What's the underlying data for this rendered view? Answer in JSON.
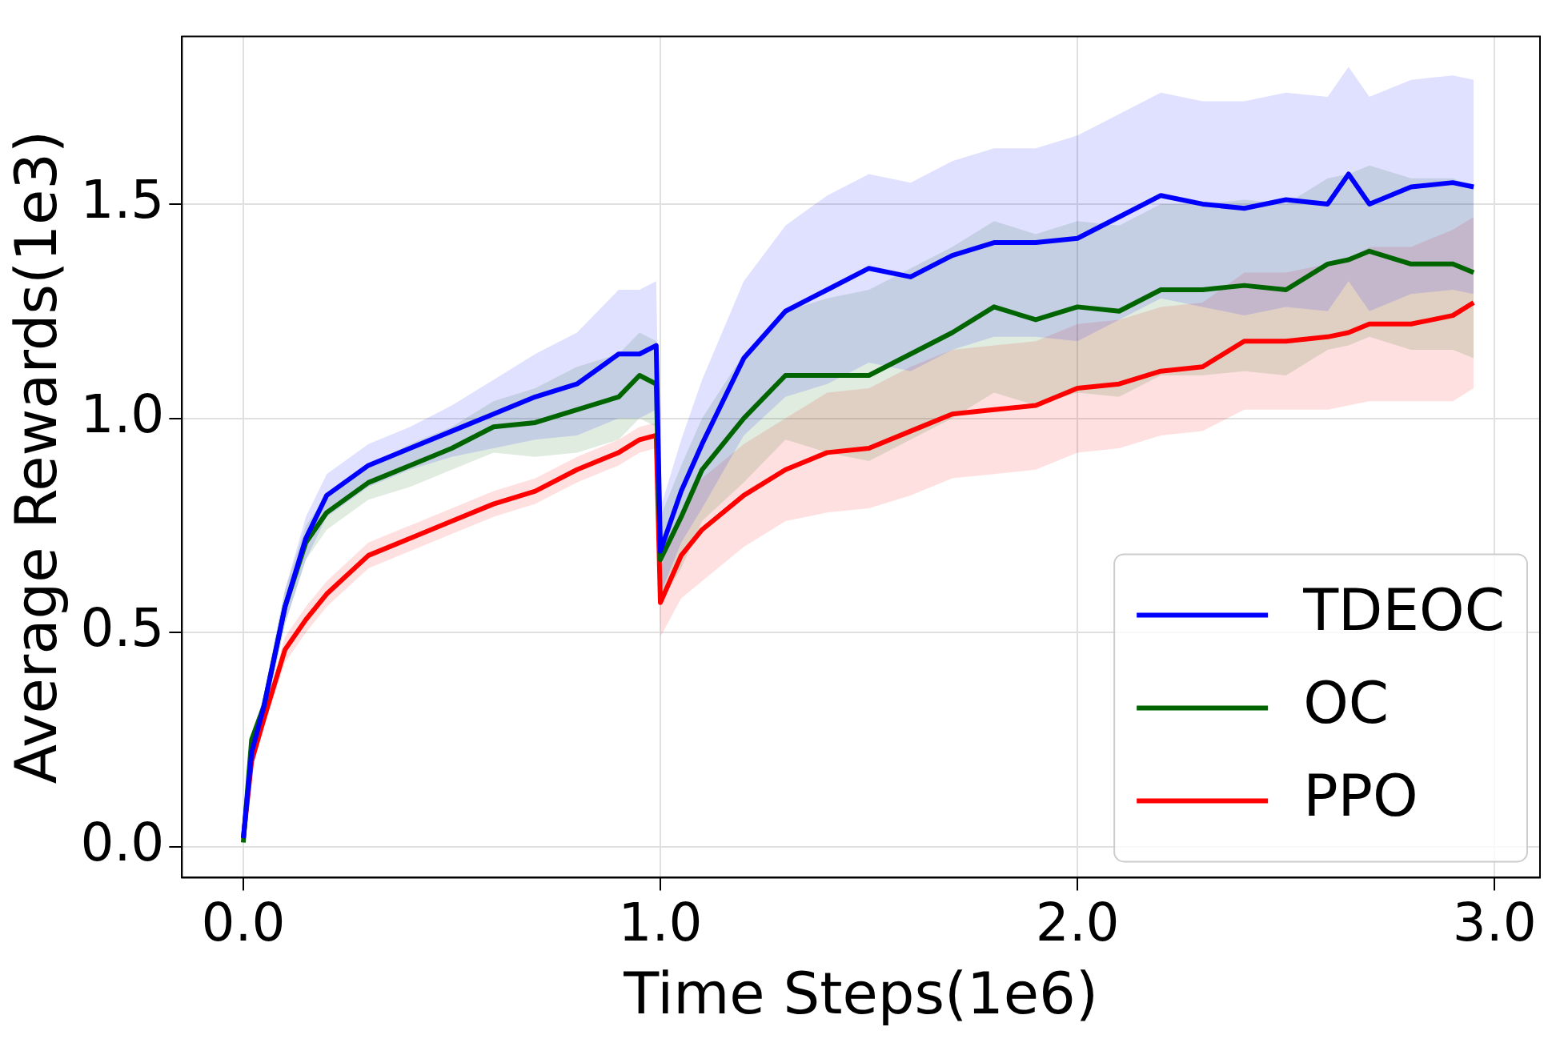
{
  "chart_data": {
    "type": "line",
    "xlabel": "Time Steps(1e6)",
    "ylabel": "Average Rewards(1e3)",
    "x": [
      0,
      0.02,
      0.05,
      0.1,
      0.15,
      0.2,
      0.3,
      0.4,
      0.5,
      0.6,
      0.7,
      0.8,
      0.9,
      0.95,
      0.99,
      1.0,
      1.05,
      1.1,
      1.2,
      1.3,
      1.4,
      1.5,
      1.6,
      1.7,
      1.8,
      1.9,
      2.0,
      2.1,
      2.2,
      2.3,
      2.4,
      2.5,
      2.6,
      2.65,
      2.7,
      2.8,
      2.9,
      2.95
    ],
    "series": [
      {
        "name": "TDEOC",
        "color": "#0000ff",
        "values": [
          0.02,
          0.22,
          0.33,
          0.56,
          0.72,
          0.82,
          0.89,
          0.93,
          0.97,
          1.01,
          1.05,
          1.08,
          1.15,
          1.15,
          1.17,
          0.69,
          0.83,
          0.94,
          1.14,
          1.25,
          1.3,
          1.35,
          1.33,
          1.38,
          1.41,
          1.41,
          1.42,
          1.47,
          1.52,
          1.5,
          1.49,
          1.51,
          1.5,
          1.57,
          1.5,
          1.54,
          1.55,
          1.54
        ],
        "upper": [
          0.02,
          0.24,
          0.36,
          0.6,
          0.77,
          0.87,
          0.94,
          0.98,
          1.03,
          1.09,
          1.15,
          1.2,
          1.3,
          1.3,
          1.32,
          0.79,
          0.95,
          1.09,
          1.32,
          1.45,
          1.52,
          1.57,
          1.55,
          1.6,
          1.63,
          1.63,
          1.66,
          1.71,
          1.76,
          1.74,
          1.74,
          1.76,
          1.75,
          1.82,
          1.75,
          1.79,
          1.8,
          1.79
        ],
        "lower": [
          0.02,
          0.2,
          0.3,
          0.52,
          0.67,
          0.77,
          0.84,
          0.88,
          0.91,
          0.93,
          0.95,
          0.96,
          1.0,
          1.0,
          1.02,
          0.59,
          0.71,
          0.79,
          0.96,
          1.05,
          1.08,
          1.13,
          1.11,
          1.16,
          1.19,
          1.19,
          1.18,
          1.23,
          1.28,
          1.26,
          1.24,
          1.26,
          1.25,
          1.32,
          1.25,
          1.29,
          1.3,
          1.29
        ]
      },
      {
        "name": "OC",
        "color": "#006400",
        "values": [
          0.01,
          0.25,
          0.33,
          0.56,
          0.71,
          0.78,
          0.85,
          0.89,
          0.93,
          0.98,
          0.99,
          1.02,
          1.05,
          1.1,
          1.08,
          0.67,
          0.77,
          0.88,
          1.0,
          1.1,
          1.1,
          1.1,
          1.15,
          1.2,
          1.26,
          1.23,
          1.26,
          1.25,
          1.3,
          1.3,
          1.31,
          1.3,
          1.36,
          1.37,
          1.39,
          1.36,
          1.36,
          1.34
        ],
        "upper": [
          0.02,
          0.24,
          0.36,
          0.6,
          0.75,
          0.82,
          0.89,
          0.94,
          0.98,
          1.04,
          1.07,
          1.12,
          1.15,
          1.2,
          1.18,
          0.77,
          0.89,
          1.0,
          1.15,
          1.25,
          1.28,
          1.3,
          1.35,
          1.4,
          1.46,
          1.43,
          1.46,
          1.45,
          1.5,
          1.5,
          1.51,
          1.5,
          1.56,
          1.57,
          1.59,
          1.56,
          1.56,
          1.54
        ],
        "lower": [
          0.02,
          0.2,
          0.3,
          0.52,
          0.67,
          0.74,
          0.81,
          0.84,
          0.88,
          0.92,
          0.91,
          0.92,
          0.95,
          1.0,
          0.98,
          0.57,
          0.65,
          0.76,
          0.85,
          0.95,
          0.92,
          0.9,
          0.95,
          1.0,
          1.06,
          1.03,
          1.06,
          1.05,
          1.1,
          1.1,
          1.11,
          1.1,
          1.16,
          1.17,
          1.19,
          1.16,
          1.16,
          1.14
        ]
      },
      {
        "name": "PPO",
        "color": "#ff0000",
        "values": [
          0.02,
          0.2,
          0.3,
          0.46,
          0.53,
          0.59,
          0.68,
          0.72,
          0.76,
          0.8,
          0.83,
          0.88,
          0.92,
          0.95,
          0.96,
          0.57,
          0.68,
          0.74,
          0.82,
          0.88,
          0.92,
          0.93,
          0.97,
          1.01,
          1.02,
          1.03,
          1.07,
          1.08,
          1.11,
          1.12,
          1.18,
          1.18,
          1.19,
          1.2,
          1.22,
          1.22,
          1.24,
          1.27
        ],
        "upper": [
          0.02,
          0.22,
          0.32,
          0.49,
          0.56,
          0.62,
          0.71,
          0.75,
          0.79,
          0.83,
          0.86,
          0.91,
          0.95,
          0.98,
          0.99,
          0.65,
          0.78,
          0.86,
          0.94,
          1.0,
          1.06,
          1.07,
          1.12,
          1.16,
          1.17,
          1.18,
          1.22,
          1.23,
          1.26,
          1.27,
          1.34,
          1.34,
          1.36,
          1.37,
          1.4,
          1.4,
          1.44,
          1.47
        ],
        "lower": [
          0.02,
          0.18,
          0.28,
          0.43,
          0.5,
          0.56,
          0.65,
          0.69,
          0.73,
          0.77,
          0.8,
          0.85,
          0.89,
          0.92,
          0.93,
          0.49,
          0.58,
          0.62,
          0.7,
          0.76,
          0.78,
          0.79,
          0.82,
          0.86,
          0.87,
          0.88,
          0.92,
          0.93,
          0.96,
          0.97,
          1.02,
          1.02,
          1.02,
          1.03,
          1.04,
          1.04,
          1.04,
          1.07
        ]
      }
    ],
    "xlim": [
      -0.147,
      3.109
    ],
    "ylim": [
      -0.072,
      1.891
    ],
    "xticks": [
      {
        "value": 0,
        "label": "0.0"
      },
      {
        "value": 1,
        "label": "1.0"
      },
      {
        "value": 2,
        "label": "2.0"
      },
      {
        "value": 3,
        "label": "3.0"
      }
    ],
    "yticks": [
      {
        "value": 0,
        "label": "0.0"
      },
      {
        "value": 0.5,
        "label": "0.5"
      },
      {
        "value": 1,
        "label": "1.0"
      },
      {
        "value": 1.5,
        "label": "1.5"
      }
    ],
    "grid": true,
    "legend": "bottom right",
    "marker": "none",
    "line_style": "solid"
  }
}
